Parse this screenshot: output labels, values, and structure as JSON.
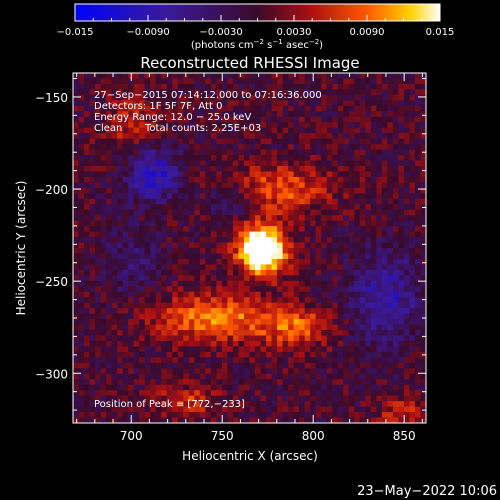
{
  "chart_data": {
    "type": "heatmap",
    "title": "Reconstructed RHESSI Image",
    "xlabel": "Heliocentric X (arcsec)",
    "ylabel": "Heliocentric Y (arcsec)",
    "xlim": [
      668,
      862
    ],
    "ylim": [
      -327,
      -137
    ],
    "xticks": [
      700,
      750,
      800,
      850
    ],
    "xtick_labels": [
      "700",
      "750",
      "800",
      "850"
    ],
    "yticks": [
      -150,
      -200,
      -250,
      -300
    ],
    "ytick_labels": [
      "−150",
      "−200",
      "−250",
      "−300"
    ],
    "colorbar": {
      "range": [
        -0.015,
        0.015
      ],
      "ticks": [
        -0.015,
        -0.009,
        -0.003,
        0.003,
        0.009,
        0.015
      ],
      "tick_labels": [
        "−0.015",
        "−0.0090",
        "−0.0030",
        "0.0030",
        "0.0090",
        "0.015"
      ],
      "unit_label_parts": [
        "(photons cm",
        "−2",
        " s",
        "−1",
        " asec",
        "−2",
        ")"
      ]
    },
    "peak": [
      772,
      -233
    ],
    "sources": [
      {
        "x": 772,
        "y": -233,
        "sx": 9,
        "sy": 9,
        "amp": 0.024
      },
      {
        "x": 745,
        "y": -270,
        "sx": 22,
        "sy": 9,
        "amp": 0.01
      },
      {
        "x": 790,
        "y": -275,
        "sx": 14,
        "sy": 8,
        "amp": 0.008
      },
      {
        "x": 780,
        "y": -200,
        "sx": 22,
        "sy": 9,
        "amp": 0.008
      },
      {
        "x": 700,
        "y": -165,
        "sx": 10,
        "sy": 12,
        "amp": 0.005
      },
      {
        "x": 730,
        "y": -315,
        "sx": 12,
        "sy": 6,
        "amp": 0.006
      },
      {
        "x": 848,
        "y": -322,
        "sx": 8,
        "sy": 6,
        "amp": 0.006
      },
      {
        "x": 712,
        "y": -192,
        "sx": 10,
        "sy": 10,
        "amp": -0.011
      },
      {
        "x": 840,
        "y": -260,
        "sx": 14,
        "sy": 18,
        "amp": -0.008
      },
      {
        "x": 755,
        "y": -205,
        "sx": 10,
        "sy": 8,
        "amp": -0.006
      },
      {
        "x": 700,
        "y": -240,
        "sx": 12,
        "sy": 14,
        "amp": -0.004
      }
    ]
  },
  "annotations": {
    "time_range": "27−Sep−2015 07:14:12.000 to 07:16:36.000",
    "detectors": "Detectors: 1F 5F 7F, Att 0",
    "energy_range": "Energy Range: 12.0 − 25.0 keV",
    "method": "Clean",
    "total_counts": "Total counts: 2.25E+03",
    "peak_label": "Position of Peak = [772,−233]"
  },
  "footer": {
    "date": "23−May−2022 10:06"
  },
  "colors": {
    "background": "#000000",
    "foreground": "#ffffff"
  }
}
